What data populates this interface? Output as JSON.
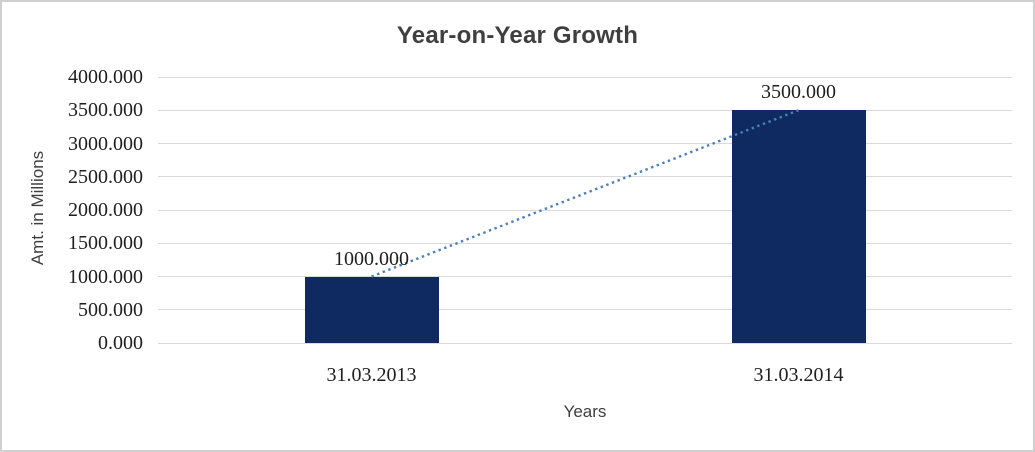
{
  "chart_data": {
    "type": "bar",
    "title": "Year-on-Year Growth",
    "xlabel": "Years",
    "ylabel": "Amt. in Millions",
    "categories": [
      "31.03.2013",
      "31.03.2014"
    ],
    "values": [
      1000,
      3500
    ],
    "data_labels": [
      "1000.000",
      "3500.000"
    ],
    "y_tick_values": [
      0,
      500,
      1000,
      1500,
      2000,
      2500,
      3000,
      3500,
      4000
    ],
    "y_tick_labels": [
      "0.000",
      "500.000",
      "1000.000",
      "1500.000",
      "2000.000",
      "2500.000",
      "3000.000",
      "3500.000",
      "4000.000"
    ],
    "ylim": [
      0,
      4000
    ],
    "grid": true,
    "legend": "none",
    "trendline": {
      "type": "linear",
      "style": "dotted",
      "connects_values": [
        1000,
        3500
      ]
    },
    "colors": {
      "bar": "#0e2a60",
      "trendline": "#4a7ebd",
      "gridline": "#d9d9d9",
      "title_text": "#3f3f3f",
      "label_text": "#1f1f1f",
      "frame_border": "#d0d0d0",
      "background": "#ffffff"
    }
  }
}
